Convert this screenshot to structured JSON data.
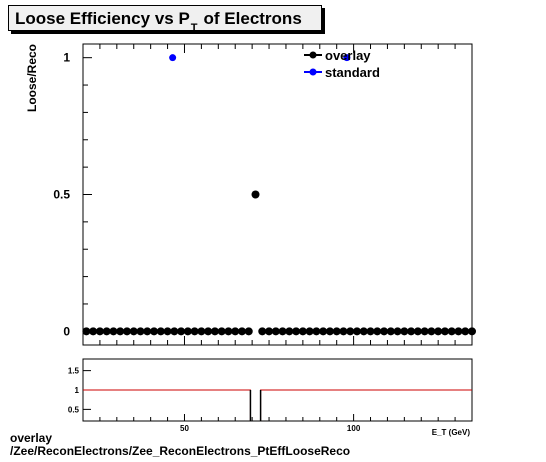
{
  "title": {
    "main": "Loose Efficiency vs P",
    "sub": "T",
    "suffix": "of Electrons"
  },
  "footer": {
    "line1": "overlay",
    "line2": "/Zee/ReconElectrons/Zee_ReconElectrons_PtEffLooseReco"
  },
  "colors": {
    "overlay": "#000000",
    "standard": "#0000ff",
    "ratio_line": "#cc0000"
  },
  "chart_data": [
    {
      "type": "scatter",
      "ylabel": "Loose/Reco",
      "xlim": [
        20,
        135
      ],
      "ylim": [
        -0.05,
        1.05
      ],
      "yticks": [
        {
          "v": 0,
          "label": "0"
        },
        {
          "v": 0.5,
          "label": "0.5"
        },
        {
          "v": 1,
          "label": "1"
        }
      ],
      "legend": {
        "placement": "top-right",
        "entries": [
          "overlay",
          "standard"
        ]
      },
      "series": [
        {
          "name": "overlay",
          "x": [
            21,
            23,
            25,
            27,
            29,
            31,
            33,
            35,
            37,
            39,
            41,
            43,
            45,
            47,
            49,
            51,
            53,
            55,
            57,
            59,
            61,
            63,
            65,
            67,
            69,
            71,
            73,
            75,
            77,
            79,
            81,
            83,
            85,
            87,
            89,
            91,
            93,
            95,
            97,
            99,
            101,
            103,
            105,
            107,
            109,
            111,
            113,
            115,
            117,
            119,
            121,
            123,
            125,
            127,
            129,
            131,
            133,
            135
          ],
          "y": [
            0,
            0,
            0,
            0,
            0,
            0,
            0,
            0,
            0,
            0,
            0,
            0,
            0,
            0,
            0,
            0,
            0,
            0,
            0,
            0,
            0,
            0,
            0,
            0,
            0,
            0.5,
            0,
            0,
            0,
            0,
            0,
            0,
            0,
            0,
            0,
            0,
            0,
            0,
            0,
            0,
            0,
            0,
            0,
            0,
            0,
            0,
            0,
            0,
            0,
            0,
            0,
            0,
            0,
            0,
            0,
            0,
            0,
            0
          ]
        },
        {
          "name": "standard",
          "x": [
            46.5,
            98
          ],
          "y": [
            1,
            1
          ]
        }
      ]
    },
    {
      "type": "line",
      "xlim": [
        20,
        135
      ],
      "ylim": [
        0.2,
        1.8
      ],
      "yticks": [
        {
          "v": 0.5,
          "label": "0.5"
        },
        {
          "v": 1,
          "label": "1"
        },
        {
          "v": 1.5,
          "label": "1.5"
        }
      ],
      "xticks": [
        {
          "v": 50,
          "label": "50"
        },
        {
          "v": 100,
          "label": "100"
        }
      ],
      "xlabel": "E_T (GeV)",
      "reference_value": 1,
      "gap": {
        "from": 69.5,
        "to": 72.5,
        "low": 0.2
      }
    }
  ]
}
